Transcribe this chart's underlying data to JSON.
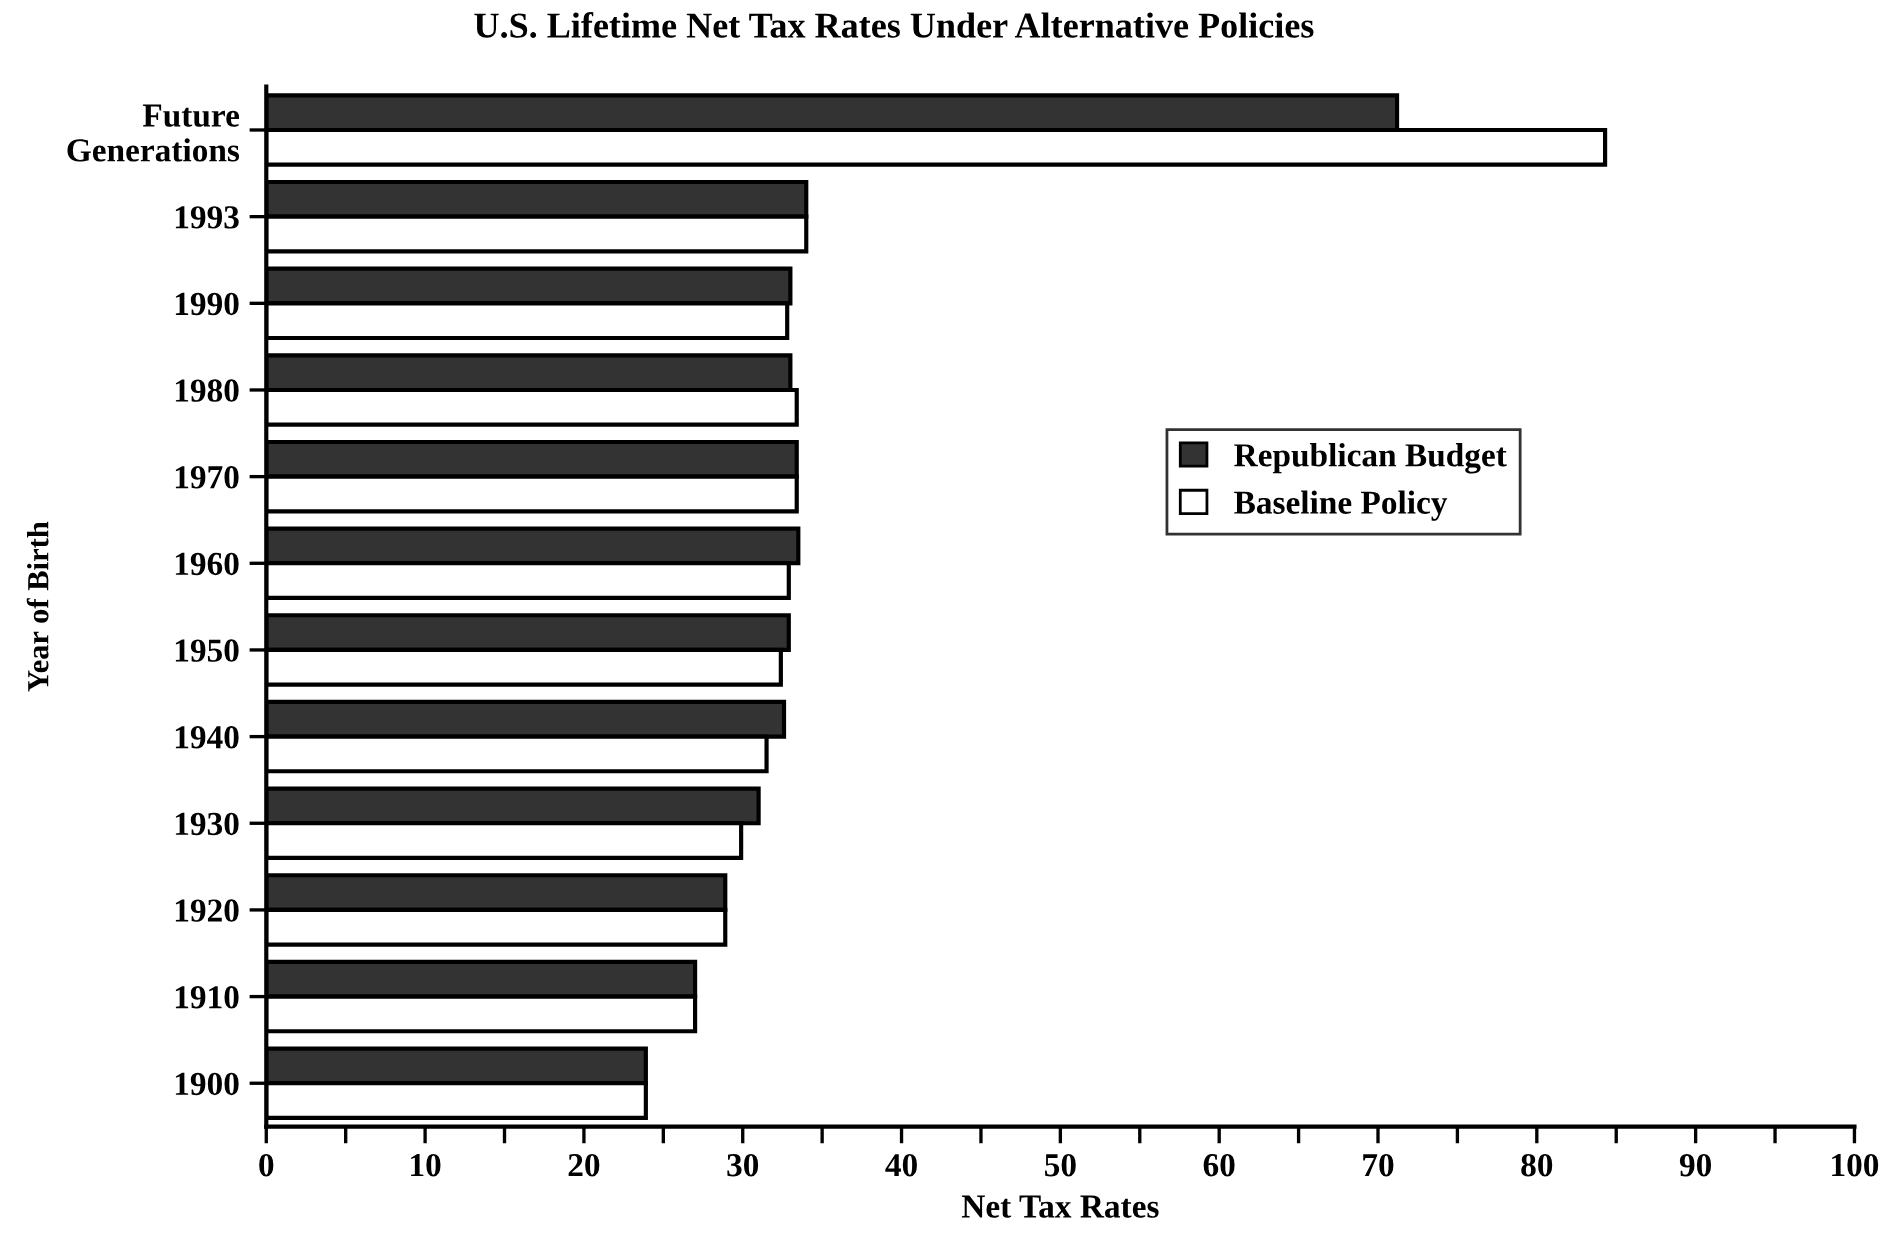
{
  "chart_data": {
    "type": "bar",
    "orientation": "horizontal",
    "title": "U.S. Lifetime Net Tax Rates Under Alternative Policies",
    "xlabel": "Net Tax Rates",
    "ylabel": "Year of Birth",
    "categories": [
      "Future\nGenerations",
      "1993",
      "1990",
      "1980",
      "1970",
      "1960",
      "1950",
      "1940",
      "1930",
      "1920",
      "1910",
      "1900"
    ],
    "series": [
      {
        "name": "Republican Budget",
        "color": "#333333",
        "values": [
          71.2,
          34.0,
          33.0,
          33.0,
          33.4,
          33.5,
          32.9,
          32.6,
          31.0,
          28.9,
          27.0,
          23.9
        ]
      },
      {
        "name": "Baseline Policy",
        "color": "#ffffff",
        "values": [
          84.3,
          34.0,
          32.8,
          33.4,
          33.4,
          32.9,
          32.4,
          31.5,
          29.9,
          28.9,
          27.0,
          23.9
        ]
      }
    ],
    "xlim": [
      0,
      100
    ],
    "xticks": [
      0,
      {
        "value": 5,
        "label": null
      },
      10,
      {
        "value": 15,
        "label": null
      },
      20,
      {
        "value": 25,
        "label": null
      },
      30,
      {
        "value": 35,
        "label": null
      },
      40,
      {
        "value": 45,
        "label": null
      },
      50,
      {
        "value": 55,
        "label": null
      },
      60,
      {
        "value": 65,
        "label": null
      },
      70,
      {
        "value": 75,
        "label": null
      },
      80,
      {
        "value": 85,
        "label": null
      },
      90,
      {
        "value": 95,
        "label": null
      },
      100
    ],
    "legend": "right",
    "grid": false
  }
}
